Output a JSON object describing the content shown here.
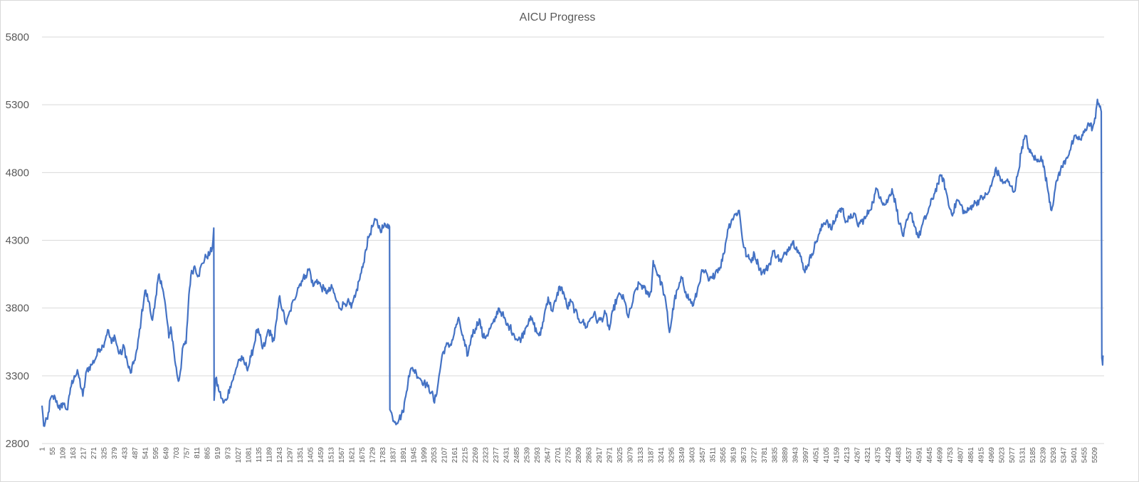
{
  "chart_data": {
    "type": "line",
    "title": "AICU Progress",
    "xlabel": "",
    "ylabel": "",
    "ylim": [
      2800,
      5800
    ],
    "yticks": [
      2800,
      3300,
      3800,
      4300,
      4800,
      5300,
      5800
    ],
    "xlim": [
      1,
      5560
    ],
    "xticks": [
      1,
      55,
      109,
      163,
      217,
      271,
      325,
      379,
      433,
      487,
      541,
      595,
      649,
      703,
      757,
      811,
      865,
      919,
      973,
      1027,
      1081,
      1135,
      1189,
      1243,
      1297,
      1351,
      1405,
      1459,
      1513,
      1567,
      1621,
      1675,
      1729,
      1783,
      1837,
      1891,
      1945,
      1999,
      2053,
      2107,
      2161,
      2215,
      2269,
      2323,
      2377,
      2431,
      2485,
      2539,
      2593,
      2647,
      2701,
      2755,
      2809,
      2863,
      2917,
      2971,
      3025,
      3079,
      3133,
      3187,
      3241,
      3295,
      3349,
      3403,
      3457,
      3511,
      3565,
      3619,
      3673,
      3727,
      3781,
      3835,
      3889,
      3943,
      3997,
      4051,
      4105,
      4159,
      4213,
      4267,
      4321,
      4375,
      4429,
      4483,
      4537,
      4591,
      4645,
      4699,
      4753,
      4807,
      4861,
      4915,
      4969,
      5023,
      5077,
      5131,
      5185,
      5239,
      5293,
      5347,
      5401,
      5455,
      5509
    ],
    "grid": true,
    "legend": "none",
    "series": [
      {
        "color": "#4472c4",
        "points": [
          [
            1,
            3080
          ],
          [
            10,
            2930
          ],
          [
            30,
            2980
          ],
          [
            45,
            3130
          ],
          [
            70,
            3140
          ],
          [
            95,
            3050
          ],
          [
            110,
            3100
          ],
          [
            135,
            3050
          ],
          [
            150,
            3210
          ],
          [
            170,
            3300
          ],
          [
            190,
            3320
          ],
          [
            215,
            3150
          ],
          [
            235,
            3340
          ],
          [
            260,
            3380
          ],
          [
            285,
            3440
          ],
          [
            300,
            3500
          ],
          [
            320,
            3520
          ],
          [
            345,
            3640
          ],
          [
            365,
            3540
          ],
          [
            380,
            3600
          ],
          [
            400,
            3480
          ],
          [
            415,
            3460
          ],
          [
            430,
            3520
          ],
          [
            450,
            3380
          ],
          [
            465,
            3320
          ],
          [
            480,
            3390
          ],
          [
            500,
            3500
          ],
          [
            520,
            3720
          ],
          [
            540,
            3930
          ],
          [
            560,
            3850
          ],
          [
            575,
            3720
          ],
          [
            590,
            3800
          ],
          [
            600,
            3900
          ],
          [
            610,
            4040
          ],
          [
            625,
            4000
          ],
          [
            640,
            3880
          ],
          [
            650,
            3780
          ],
          [
            665,
            3580
          ],
          [
            675,
            3660
          ],
          [
            690,
            3500
          ],
          [
            700,
            3380
          ],
          [
            715,
            3260
          ],
          [
            725,
            3330
          ],
          [
            740,
            3520
          ],
          [
            755,
            3540
          ],
          [
            770,
            3900
          ],
          [
            780,
            4040
          ],
          [
            800,
            4110
          ],
          [
            820,
            4040
          ],
          [
            840,
            4130
          ],
          [
            860,
            4180
          ],
          [
            880,
            4200
          ],
          [
            893,
            4250
          ],
          [
            900,
            4390
          ],
          [
            902,
            3120
          ],
          [
            910,
            3280
          ],
          [
            930,
            3180
          ],
          [
            950,
            3100
          ],
          [
            965,
            3120
          ],
          [
            985,
            3220
          ],
          [
            1010,
            3310
          ],
          [
            1030,
            3420
          ],
          [
            1050,
            3420
          ],
          [
            1065,
            3380
          ],
          [
            1080,
            3360
          ],
          [
            1095,
            3440
          ],
          [
            1110,
            3520
          ],
          [
            1125,
            3640
          ],
          [
            1140,
            3600
          ],
          [
            1155,
            3500
          ],
          [
            1170,
            3540
          ],
          [
            1185,
            3640
          ],
          [
            1200,
            3600
          ],
          [
            1215,
            3560
          ],
          [
            1230,
            3720
          ],
          [
            1245,
            3890
          ],
          [
            1260,
            3780
          ],
          [
            1280,
            3680
          ],
          [
            1300,
            3780
          ],
          [
            1320,
            3860
          ],
          [
            1340,
            3950
          ],
          [
            1360,
            4000
          ],
          [
            1380,
            4040
          ],
          [
            1400,
            4090
          ],
          [
            1420,
            3960
          ],
          [
            1440,
            4010
          ],
          [
            1460,
            3960
          ],
          [
            1480,
            3930
          ],
          [
            1500,
            3920
          ],
          [
            1520,
            3950
          ],
          [
            1540,
            3860
          ],
          [
            1560,
            3800
          ],
          [
            1580,
            3830
          ],
          [
            1600,
            3850
          ],
          [
            1620,
            3800
          ],
          [
            1640,
            3880
          ],
          [
            1660,
            4000
          ],
          [
            1680,
            4100
          ],
          [
            1695,
            4230
          ],
          [
            1710,
            4320
          ],
          [
            1730,
            4400
          ],
          [
            1750,
            4450
          ],
          [
            1770,
            4380
          ],
          [
            1790,
            4400
          ],
          [
            1810,
            4420
          ],
          [
            1820,
            4400
          ],
          [
            1822,
            3050
          ],
          [
            1835,
            3000
          ],
          [
            1850,
            2960
          ],
          [
            1870,
            2980
          ],
          [
            1890,
            3030
          ],
          [
            1905,
            3150
          ],
          [
            1920,
            3300
          ],
          [
            1940,
            3360
          ],
          [
            1960,
            3320
          ],
          [
            1980,
            3280
          ],
          [
            2000,
            3250
          ],
          [
            2020,
            3220
          ],
          [
            2040,
            3180
          ],
          [
            2055,
            3100
          ],
          [
            2075,
            3250
          ],
          [
            2095,
            3450
          ],
          [
            2115,
            3520
          ],
          [
            2135,
            3520
          ],
          [
            2155,
            3590
          ],
          [
            2170,
            3680
          ],
          [
            2185,
            3710
          ],
          [
            2200,
            3600
          ],
          [
            2215,
            3520
          ],
          [
            2230,
            3450
          ],
          [
            2250,
            3600
          ],
          [
            2270,
            3650
          ],
          [
            2290,
            3720
          ],
          [
            2310,
            3580
          ],
          [
            2330,
            3600
          ],
          [
            2350,
            3660
          ],
          [
            2370,
            3700
          ],
          [
            2390,
            3800
          ],
          [
            2410,
            3760
          ],
          [
            2430,
            3680
          ],
          [
            2450,
            3660
          ],
          [
            2470,
            3610
          ],
          [
            2490,
            3560
          ],
          [
            2510,
            3580
          ],
          [
            2530,
            3650
          ],
          [
            2550,
            3720
          ],
          [
            2570,
            3700
          ],
          [
            2590,
            3620
          ],
          [
            2610,
            3600
          ],
          [
            2630,
            3750
          ],
          [
            2650,
            3880
          ],
          [
            2670,
            3780
          ],
          [
            2690,
            3850
          ],
          [
            2710,
            3960
          ],
          [
            2730,
            3920
          ],
          [
            2750,
            3800
          ],
          [
            2770,
            3850
          ],
          [
            2790,
            3780
          ],
          [
            2810,
            3720
          ],
          [
            2830,
            3700
          ],
          [
            2850,
            3660
          ],
          [
            2870,
            3720
          ],
          [
            2890,
            3760
          ],
          [
            2910,
            3700
          ],
          [
            2930,
            3720
          ],
          [
            2950,
            3760
          ],
          [
            2970,
            3640
          ],
          [
            2990,
            3780
          ],
          [
            3010,
            3870
          ],
          [
            3030,
            3900
          ],
          [
            3050,
            3850
          ],
          [
            3070,
            3730
          ],
          [
            3090,
            3830
          ],
          [
            3110,
            3940
          ],
          [
            3130,
            3980
          ],
          [
            3150,
            3950
          ],
          [
            3170,
            3900
          ],
          [
            3190,
            3920
          ],
          [
            3200,
            4150
          ],
          [
            3210,
            4100
          ],
          [
            3230,
            4030
          ],
          [
            3250,
            3950
          ],
          [
            3270,
            3800
          ],
          [
            3285,
            3620
          ],
          [
            3295,
            3700
          ],
          [
            3310,
            3850
          ],
          [
            3330,
            3940
          ],
          [
            3350,
            4020
          ],
          [
            3370,
            3920
          ],
          [
            3390,
            3860
          ],
          [
            3410,
            3820
          ],
          [
            3430,
            3920
          ],
          [
            3450,
            4050
          ],
          [
            3470,
            4070
          ],
          [
            3490,
            4000
          ],
          [
            3510,
            4020
          ],
          [
            3530,
            4080
          ],
          [
            3550,
            4100
          ],
          [
            3570,
            4200
          ],
          [
            3590,
            4380
          ],
          [
            3610,
            4450
          ],
          [
            3630,
            4490
          ],
          [
            3650,
            4520
          ],
          [
            3670,
            4280
          ],
          [
            3690,
            4180
          ],
          [
            3710,
            4150
          ],
          [
            3730,
            4200
          ],
          [
            3750,
            4120
          ],
          [
            3770,
            4060
          ],
          [
            3790,
            4080
          ],
          [
            3810,
            4130
          ],
          [
            3830,
            4220
          ],
          [
            3850,
            4180
          ],
          [
            3870,
            4140
          ],
          [
            3890,
            4200
          ],
          [
            3910,
            4250
          ],
          [
            3930,
            4290
          ],
          [
            3950,
            4250
          ],
          [
            3970,
            4180
          ],
          [
            3990,
            4080
          ],
          [
            4010,
            4120
          ],
          [
            4030,
            4200
          ],
          [
            4050,
            4280
          ],
          [
            4070,
            4350
          ],
          [
            4090,
            4420
          ],
          [
            4110,
            4450
          ],
          [
            4130,
            4380
          ],
          [
            4150,
            4440
          ],
          [
            4170,
            4520
          ],
          [
            4190,
            4530
          ],
          [
            4210,
            4440
          ],
          [
            4230,
            4460
          ],
          [
            4250,
            4500
          ],
          [
            4270,
            4410
          ],
          [
            4290,
            4440
          ],
          [
            4310,
            4460
          ],
          [
            4330,
            4520
          ],
          [
            4350,
            4580
          ],
          [
            4370,
            4680
          ],
          [
            4390,
            4620
          ],
          [
            4410,
            4560
          ],
          [
            4430,
            4600
          ],
          [
            4450,
            4680
          ],
          [
            4470,
            4560
          ],
          [
            4490,
            4420
          ],
          [
            4510,
            4330
          ],
          [
            4530,
            4450
          ],
          [
            4550,
            4500
          ],
          [
            4570,
            4400
          ],
          [
            4590,
            4320
          ],
          [
            4610,
            4420
          ],
          [
            4630,
            4480
          ],
          [
            4650,
            4560
          ],
          [
            4670,
            4640
          ],
          [
            4690,
            4720
          ],
          [
            4710,
            4780
          ],
          [
            4730,
            4680
          ],
          [
            4750,
            4540
          ],
          [
            4770,
            4500
          ],
          [
            4790,
            4600
          ],
          [
            4810,
            4560
          ],
          [
            4830,
            4500
          ],
          [
            4850,
            4520
          ],
          [
            4870,
            4560
          ],
          [
            4890,
            4580
          ],
          [
            4910,
            4600
          ],
          [
            4930,
            4620
          ],
          [
            4950,
            4640
          ],
          [
            4970,
            4700
          ],
          [
            4990,
            4820
          ],
          [
            5010,
            4780
          ],
          [
            5030,
            4720
          ],
          [
            5050,
            4740
          ],
          [
            5070,
            4700
          ],
          [
            5090,
            4660
          ],
          [
            5110,
            4800
          ],
          [
            5130,
            4990
          ],
          [
            5150,
            5070
          ],
          [
            5170,
            4950
          ],
          [
            5190,
            4920
          ],
          [
            5210,
            4880
          ],
          [
            5230,
            4920
          ],
          [
            5250,
            4800
          ],
          [
            5270,
            4640
          ],
          [
            5285,
            4520
          ],
          [
            5300,
            4650
          ],
          [
            5320,
            4780
          ],
          [
            5340,
            4840
          ],
          [
            5360,
            4900
          ],
          [
            5380,
            4960
          ],
          [
            5400,
            5040
          ],
          [
            5420,
            5060
          ],
          [
            5440,
            5040
          ],
          [
            5460,
            5120
          ],
          [
            5480,
            5160
          ],
          [
            5500,
            5130
          ],
          [
            5515,
            5200
          ],
          [
            5525,
            5340
          ],
          [
            5540,
            5290
          ],
          [
            5545,
            5250
          ],
          [
            5548,
            3430
          ],
          [
            5552,
            3380
          ],
          [
            5555,
            3450
          ]
        ]
      }
    ]
  }
}
